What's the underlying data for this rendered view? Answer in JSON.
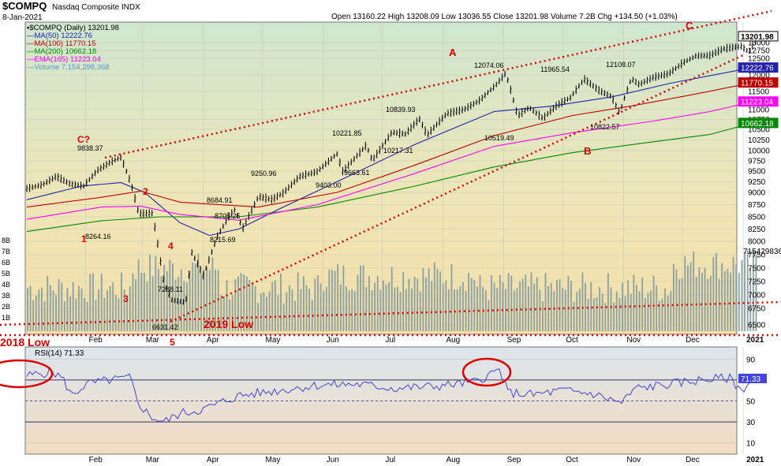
{
  "header": {
    "symbol": "$COMPQ",
    "name": "Nasdaq Composite INDX",
    "date": "8-Jan-2021",
    "ohlc": "Open 13160.22  High 13208.09  Low 13036.55  Close 13201.98  Volume 7.2B  Chg +134.50 (+1.03%)"
  },
  "legend": [
    {
      "text": "▪$COMPQ (Daily) 13201.98",
      "color": "#000000"
    },
    {
      "text": "—MA(50) 12222.76",
      "color": "#2222aa"
    },
    {
      "text": "—MA(100) 11770.15",
      "color": "#bb0000"
    },
    {
      "text": "—MA(200) 10662.18",
      "color": "#008800"
    },
    {
      "text": "—EMA(165) 11223.04",
      "color": "#ff00ff"
    },
    {
      "text": "—Volume 7,154,298,368",
      "color": "#5599cc"
    }
  ],
  "rsi": {
    "label": "RSI(14) 71.33",
    "value_label": "71.33",
    "ticks": [
      "90",
      "70",
      "50",
      "30",
      "10"
    ]
  },
  "colors": {
    "price_bg_top": "#cfe6cf",
    "price_bg_bottom": "#f5dfa8",
    "rsi_bg": "#dce6ee",
    "candle": "#000000",
    "volume": "#8ea3a3",
    "ma50": "#2222aa",
    "ma100": "#bb0000",
    "ma200": "#008800",
    "ema165": "#ff00ff",
    "rsi_line": "#4444dd",
    "annotation": "#dd0000"
  },
  "chart_data": {
    "type": "line",
    "title": "$COMPQ Nasdaq Composite INDX",
    "ylim": [
      6400,
      13500
    ],
    "x_ticks": [
      "Feb",
      "Mar",
      "Apr",
      "May",
      "Jun",
      "Jul",
      "Aug",
      "Sep",
      "Oct",
      "Nov",
      "Dec",
      "2021"
    ],
    "y_ticks": [
      "13000",
      "12750",
      "12500",
      "12000",
      "11500",
      "11000",
      "10750",
      "10500",
      "10250",
      "10000",
      "9750",
      "9500",
      "9250",
      "9000",
      "8750",
      "8500",
      "8250",
      "8000",
      "7750",
      "7500",
      "7250",
      "7000",
      "6750",
      "6500"
    ],
    "right_value_labels": [
      "13201.98",
      "12222.76",
      "11770.15",
      "11223.04",
      "10662.18"
    ],
    "volume_axis_labels": [
      "8B",
      "7B",
      "6B",
      "5B",
      "4B",
      "3B",
      "2B",
      "1B"
    ],
    "volume_last_label": "7154298368",
    "series": [
      {
        "name": "$COMPQ (Daily)",
        "points": [
          [
            "Jan 2",
            9092
          ],
          [
            "Jan 10",
            9180
          ],
          [
            "Jan 17",
            9380
          ],
          [
            "Jan 24",
            9200
          ],
          [
            "Jan 31",
            9150
          ],
          [
            "Feb 7",
            9520
          ],
          [
            "Feb 14",
            9730
          ],
          [
            "Feb 19",
            9838
          ],
          [
            "Feb 24",
            9220
          ],
          [
            "Feb 28",
            8567
          ],
          [
            "Mar 6",
            8575
          ],
          [
            "Mar 12",
            7201
          ],
          [
            "Mar 16",
            6904
          ],
          [
            "Mar 20",
            6880
          ],
          [
            "Mar 23",
            6860
          ],
          [
            "Mar 26",
            7797
          ],
          [
            "Apr 1",
            7360
          ],
          [
            "Apr 8",
            8090
          ],
          [
            "Apr 14",
            8515
          ],
          [
            "Apr 17",
            8650
          ],
          [
            "Apr 21",
            8263
          ],
          [
            "Apr 29",
            8914
          ],
          [
            "May 6",
            8854
          ],
          [
            "May 12",
            9002
          ],
          [
            "May 20",
            9375
          ],
          [
            "May 29",
            9490
          ],
          [
            "Jun 8",
            9924
          ],
          [
            "Jun 11",
            9492
          ],
          [
            "Jun 23",
            10131
          ],
          [
            "Jun 26",
            9757
          ],
          [
            "Jul 6",
            10433
          ],
          [
            "Jul 13",
            10390
          ],
          [
            "Jul 20",
            10767
          ],
          [
            "Jul 24",
            10363
          ],
          [
            "Aug 3",
            10902
          ],
          [
            "Aug 12",
            11012
          ],
          [
            "Aug 20",
            11265
          ],
          [
            "Aug 28",
            11695
          ],
          [
            "Sep 2",
            12056
          ],
          [
            "Sep 8",
            10847
          ],
          [
            "Sep 14",
            11056
          ],
          [
            "Sep 21",
            10778
          ],
          [
            "Sep 28",
            11117
          ],
          [
            "Oct 5",
            11332
          ],
          [
            "Oct 12",
            11876
          ],
          [
            "Oct 20",
            11516
          ],
          [
            "Oct 26",
            11358
          ],
          [
            "Oct 30",
            10912
          ],
          [
            "Nov 5",
            11890
          ],
          [
            "Nov 9",
            11713
          ],
          [
            "Nov 16",
            11924
          ],
          [
            "Nov 24",
            12037
          ],
          [
            "Dec 1",
            12355
          ],
          [
            "Dec 8",
            12582
          ],
          [
            "Dec 15",
            12595
          ],
          [
            "Dec 22",
            12807
          ],
          [
            "Dec 31",
            12888
          ],
          [
            "Jan 4",
            12698
          ],
          [
            "Jan 8",
            13202
          ]
        ]
      }
    ],
    "annotations": [
      {
        "text": "9838.37"
      },
      {
        "text": "8264.16"
      },
      {
        "text": "8684.91"
      },
      {
        "text": "8705.25"
      },
      {
        "text": "8215.69"
      },
      {
        "text": "7288.11"
      },
      {
        "text": "6631.42"
      },
      {
        "text": "9250.96"
      },
      {
        "text": "9403.00"
      },
      {
        "text": "9663.61"
      },
      {
        "text": "10221.85"
      },
      {
        "text": "10839.93"
      },
      {
        "text": "10217.31"
      },
      {
        "text": "12074.06"
      },
      {
        "text": "11965.54"
      },
      {
        "text": "10519.49"
      },
      {
        "text": "12108.07"
      },
      {
        "text": "10822.57"
      }
    ],
    "wave_labels": [
      "C?",
      "1",
      "2",
      "3",
      "4",
      "5",
      "A",
      "B",
      "C"
    ],
    "support_labels": [
      "2019 Low",
      "2018 Low"
    ]
  }
}
